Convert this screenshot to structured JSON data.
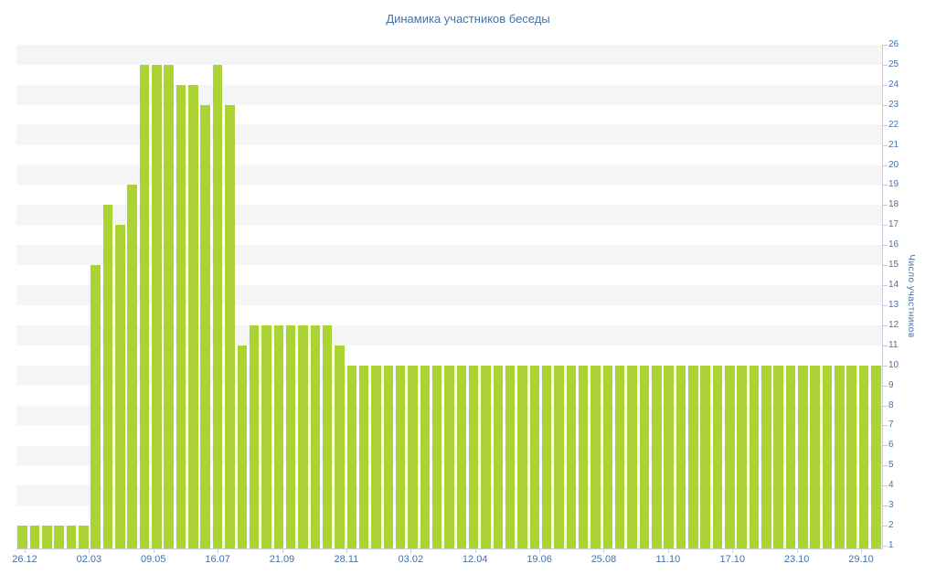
{
  "title": "Динамика участников беседы",
  "y_axis": {
    "title": "Число участников",
    "ticks": [
      1,
      2,
      3,
      4,
      5,
      6,
      7,
      8,
      9,
      10,
      11,
      12,
      13,
      14,
      15,
      16,
      17,
      18,
      19,
      20,
      21,
      22,
      23,
      24,
      25,
      26
    ]
  },
  "x_axis": {
    "tick_labels": [
      "26.12",
      "02.03",
      "09.05",
      "16.07",
      "21.09",
      "28.11",
      "03.02",
      "12.04",
      "19.06",
      "25.08",
      "11.10",
      "17.10",
      "23.10",
      "29.10"
    ]
  },
  "colors": {
    "bar": "#aad333",
    "label_text": "#4572a7",
    "axis_line": "#c0d0e0",
    "stripe": "#f5f5f5",
    "background": "#ffffff"
  },
  "chart_data": {
    "type": "bar",
    "title": "Динамика участников беседы",
    "xlabel": "",
    "ylabel": "Число участников",
    "ylim": [
      1,
      26
    ],
    "grid": "horizontal-stripes",
    "legend": "none",
    "x_tick_labels": [
      "26.12",
      "02.03",
      "09.05",
      "16.07",
      "21.09",
      "28.11",
      "03.02",
      "12.04",
      "19.06",
      "25.08",
      "11.10",
      "17.10",
      "23.10",
      "29.10"
    ],
    "values": [
      2,
      2,
      2,
      2,
      2,
      2,
      15,
      18,
      17,
      19,
      25,
      25,
      25,
      24,
      24,
      23,
      25,
      23,
      11,
      12,
      12,
      12,
      12,
      12,
      12,
      12,
      11,
      10,
      10,
      10,
      10,
      10,
      10,
      10,
      10,
      10,
      10,
      10,
      10,
      10,
      10,
      10,
      10,
      10,
      10,
      10,
      10,
      10,
      10,
      10,
      10,
      10,
      10,
      10,
      10,
      10,
      10,
      10,
      10,
      10,
      10,
      10,
      10,
      10,
      10,
      10,
      10,
      10,
      10,
      10,
      10
    ]
  }
}
